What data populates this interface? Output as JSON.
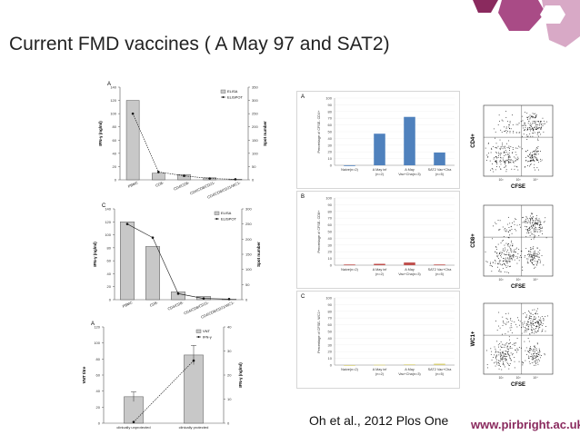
{
  "slide": {
    "title": "Current FMD vaccines ( A May 97 and SAT2)",
    "citation": "Oh et al., 2012 Plos One",
    "website": "www.pirbright.ac.uk",
    "colors": {
      "accent_dark": "#8a2a5e",
      "accent_mid": "#a94b86",
      "accent_light": "#d8a9c6",
      "bar_blue": "#4f81bd",
      "bar_red": "#c0504d",
      "bar_olive": "#d8d07a",
      "bar_gray": "#c8c8c8"
    }
  },
  "chart_data": [
    {
      "id": "panelA-left",
      "type": "bar",
      "panel_label": "A",
      "categories": [
        "PBMC",
        "CD8-",
        "CD4/CD8-",
        "CD4/CD8/CD21-",
        "CD4/CD8/CD21/WC1-"
      ],
      "series": [
        {
          "name": "ELISA",
          "kind": "bar",
          "values": [
            120,
            10,
            8,
            3,
            1
          ]
        },
        {
          "name": "ELISPOT",
          "kind": "line",
          "values": [
            250,
            30,
            15,
            5,
            2
          ]
        }
      ],
      "ylabel": "IFN-γ (ng/ml)",
      "y2label": "Spot number",
      "ylim": [
        0,
        140
      ],
      "y2lim": [
        0,
        350
      ],
      "yticks": [
        "0",
        "20",
        "40",
        "60",
        "80",
        "100",
        "120",
        "140"
      ],
      "y2ticks": [
        "0",
        "50",
        "100",
        "150",
        "200",
        "250",
        "300",
        "350"
      ],
      "legend": "top-right"
    },
    {
      "id": "panelC-left",
      "type": "bar",
      "panel_label": "C",
      "categories": [
        "PBMC",
        "CD8-",
        "CD4/CD8-",
        "CD4/CD8/CD21-",
        "CD4/CD8/CD21/WC1-"
      ],
      "series": [
        {
          "name": "ELISA",
          "kind": "bar",
          "values": [
            120,
            82,
            12,
            5,
            1
          ]
        },
        {
          "name": "ELISPOT",
          "kind": "line",
          "values": [
            250,
            205,
            20,
            4,
            2
          ]
        }
      ],
      "ylabel": "IFN-γ (ng/ml)",
      "y2label": "Spot number",
      "ylim": [
        0,
        140
      ],
      "y2lim": [
        0,
        300
      ],
      "yticks": [
        "0",
        "20",
        "40",
        "60",
        "80",
        "100",
        "120",
        "140"
      ],
      "y2ticks": [
        "0",
        "50",
        "100",
        "150",
        "200",
        "250",
        "300"
      ],
      "legend": "top-right"
    },
    {
      "id": "panelA-bottom",
      "type": "bar",
      "panel_label": "A",
      "categories": [
        "clinically unprotected",
        "clinically protected"
      ],
      "series": [
        {
          "name": "VNT",
          "kind": "bar",
          "values": [
            33,
            85
          ],
          "errors": [
            6,
            12
          ]
        },
        {
          "name": "IFN-γ",
          "kind": "line",
          "values": [
            0.5,
            26
          ],
          "errors": [
            0,
            0
          ]
        }
      ],
      "ylabel": "VNT titre",
      "y2label": "IFN-γ (ng/ml)",
      "ylim": [
        0,
        120
      ],
      "y2lim": [
        0,
        40
      ],
      "yticks": [
        "0",
        "20",
        "40",
        "60",
        "80",
        "100",
        "120"
      ],
      "y2ticks": [
        "0",
        "10",
        "20",
        "30",
        "40"
      ],
      "legend": "top-right"
    },
    {
      "id": "panelA-right",
      "type": "bar",
      "panel_label": "A",
      "categories": [
        "Naive(n=2)",
        "A May inf\n(n=2)",
        "A May\nVac+Cha(n=3)",
        "SAT2 Vac+Cha\n(n=5)"
      ],
      "series": [
        {
          "name": "CD4",
          "values": [
            0,
            47,
            72,
            19
          ]
        }
      ],
      "ylabel": "Percentage of CFSE- CD4+",
      "ylim": [
        0,
        100
      ],
      "yticks": [
        "0",
        "10",
        "20",
        "30",
        "40",
        "50",
        "60",
        "70",
        "80",
        "90",
        "100"
      ]
    },
    {
      "id": "panelB-right",
      "type": "bar",
      "panel_label": "B",
      "categories": [
        "Naive(n=2)",
        "A May inf\n(n=2)",
        "A May\nVac+Cha(n=3)",
        "SAT2 Vac+Cha\n(n=5)"
      ],
      "series": [
        {
          "name": "CD8",
          "values": [
            1,
            2,
            4,
            1
          ]
        }
      ],
      "ylabel": "Percentage of CFSE- CD8+",
      "ylim": [
        0,
        100
      ],
      "yticks": [
        "0",
        "10",
        "20",
        "30",
        "40",
        "50",
        "60",
        "70",
        "80",
        "90",
        "100"
      ]
    },
    {
      "id": "panelC-right",
      "type": "bar",
      "panel_label": "C",
      "categories": [
        "Naive(n=2)",
        "A May inf\n(n=2)",
        "A May\nVac+Cha(n=3)",
        "SAT2 Vac+Cha\n(n=5)"
      ],
      "series": [
        {
          "name": "WC1",
          "values": [
            0,
            0.5,
            1,
            2
          ]
        }
      ],
      "ylabel": "Percentage of CFSE- WC1+",
      "ylim": [
        0,
        100
      ],
      "yticks": [
        "0",
        "10",
        "20",
        "30",
        "40",
        "50",
        "60",
        "70",
        "80",
        "90",
        "100"
      ]
    }
  ],
  "flow_plots": [
    {
      "id": "flow-1",
      "y_label": "CD4+",
      "x_label": "CFSE",
      "tick_labels": [
        "10²",
        "10³",
        "10⁴"
      ]
    },
    {
      "id": "flow-2",
      "y_label": "CD8+",
      "x_label": "CFSE",
      "tick_labels": [
        "10²",
        "10³",
        "10⁴"
      ]
    },
    {
      "id": "flow-3",
      "y_label": "WC1+",
      "x_label": "CFSE",
      "tick_labels": [
        "10²",
        "10³",
        "10⁴"
      ]
    }
  ]
}
